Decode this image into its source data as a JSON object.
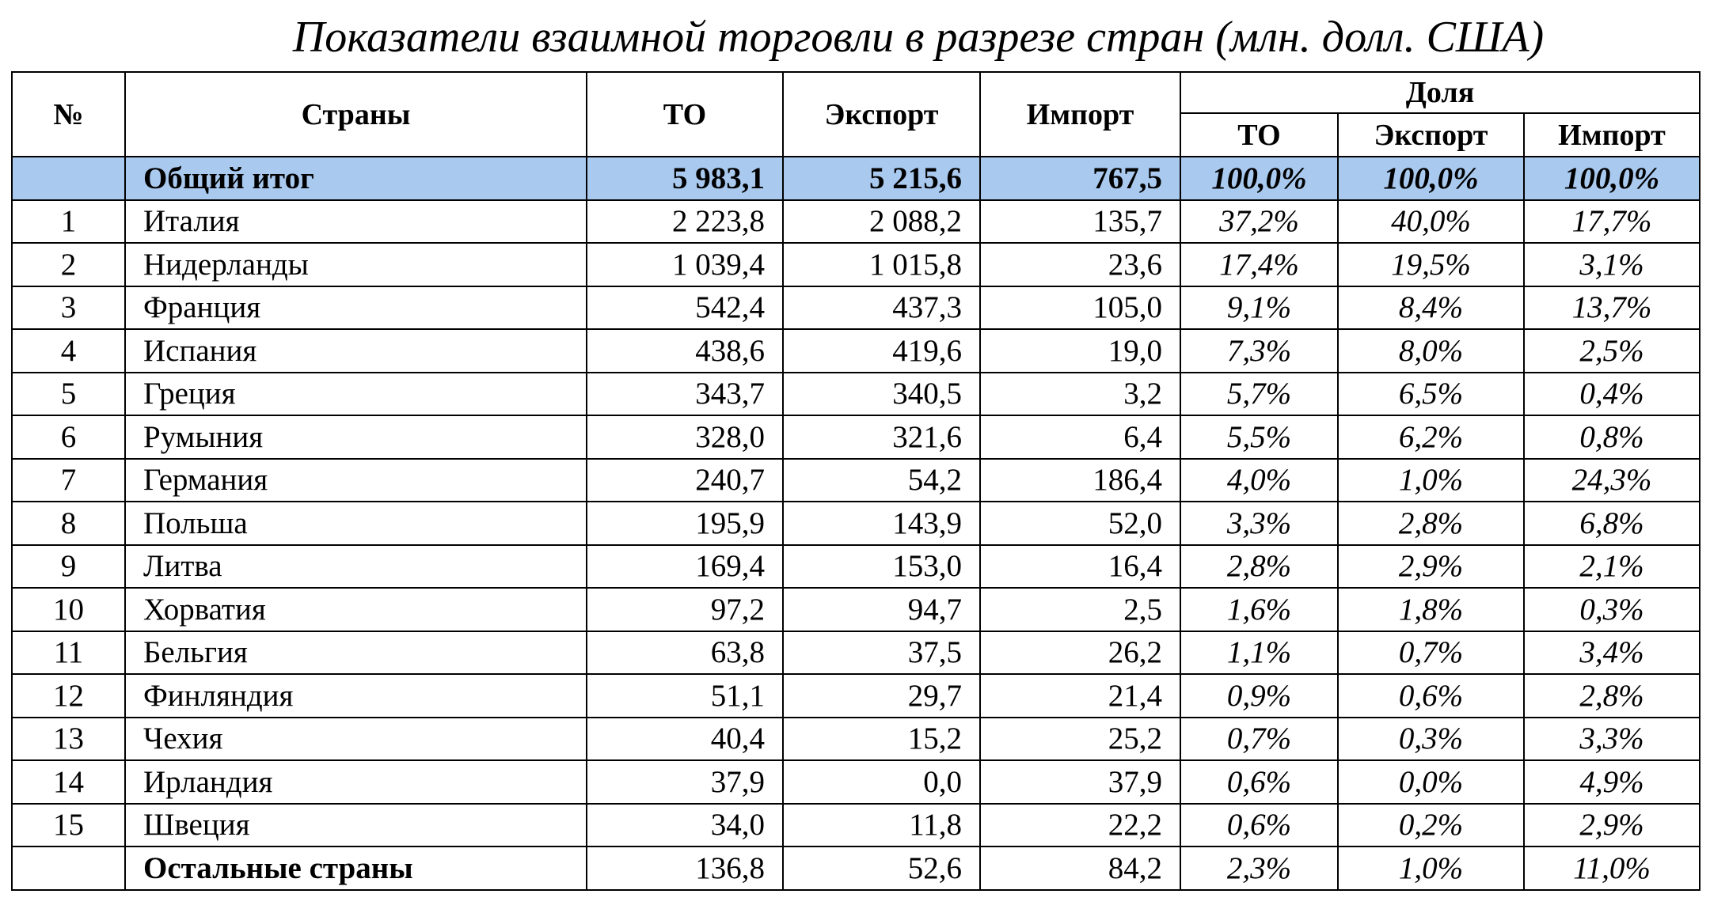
{
  "title": "Показатели взаимной торговли в разрезе стран (млн. долл. США)",
  "table": {
    "header": {
      "no": "№",
      "country": "Страны",
      "to": "ТО",
      "export": "Экспорт",
      "import": "Импорт",
      "share": "Доля",
      "share_to": "ТО",
      "share_export": "Экспорт",
      "share_import": "Импорт"
    },
    "total": {
      "label": "Общий итог",
      "values": [
        "5 983,1",
        "5 215,6",
        "767,5",
        "100,0%",
        "100,0%",
        "100,0%"
      ]
    },
    "rows": [
      [
        "1",
        "Италия",
        "2 223,8",
        "2 088,2",
        "135,7",
        "37,2%",
        "40,0%",
        "17,7%"
      ],
      [
        "2",
        "Нидерланды",
        "1 039,4",
        "1 015,8",
        "23,6",
        "17,4%",
        "19,5%",
        "3,1%"
      ],
      [
        "3",
        "Франция",
        "542,4",
        "437,3",
        "105,0",
        "9,1%",
        "8,4%",
        "13,7%"
      ],
      [
        "4",
        "Испания",
        "438,6",
        "419,6",
        "19,0",
        "7,3%",
        "8,0%",
        "2,5%"
      ],
      [
        "5",
        "Греция",
        "343,7",
        "340,5",
        "3,2",
        "5,7%",
        "6,5%",
        "0,4%"
      ],
      [
        "6",
        "Румыния",
        "328,0",
        "321,6",
        "6,4",
        "5,5%",
        "6,2%",
        "0,8%"
      ],
      [
        "7",
        "Германия",
        "240,7",
        "54,2",
        "186,4",
        "4,0%",
        "1,0%",
        "24,3%"
      ],
      [
        "8",
        "Польша",
        "195,9",
        "143,9",
        "52,0",
        "3,3%",
        "2,8%",
        "6,8%"
      ],
      [
        "9",
        "Литва",
        "169,4",
        "153,0",
        "16,4",
        "2,8%",
        "2,9%",
        "2,1%"
      ],
      [
        "10",
        "Хорватия",
        "97,2",
        "94,7",
        "2,5",
        "1,6%",
        "1,8%",
        "0,3%"
      ],
      [
        "11",
        "Бельгия",
        "63,8",
        "37,5",
        "26,2",
        "1,1%",
        "0,7%",
        "3,4%"
      ],
      [
        "12",
        "Финляндия",
        "51,1",
        "29,7",
        "21,4",
        "0,9%",
        "0,6%",
        "2,8%"
      ],
      [
        "13",
        "Чехия",
        "40,4",
        "15,2",
        "25,2",
        "0,7%",
        "0,3%",
        "3,3%"
      ],
      [
        "14",
        "Ирландия",
        "37,9",
        "0,0",
        "37,9",
        "0,6%",
        "0,0%",
        "4,9%"
      ],
      [
        "15",
        "Швеция",
        "34,0",
        "11,8",
        "22,2",
        "0,6%",
        "0,2%",
        "2,9%"
      ]
    ],
    "other": {
      "label": "Остальные страны",
      "values": [
        "136,8",
        "52,6",
        "84,2",
        "2,3%",
        "1,0%",
        "11,0%"
      ]
    }
  }
}
